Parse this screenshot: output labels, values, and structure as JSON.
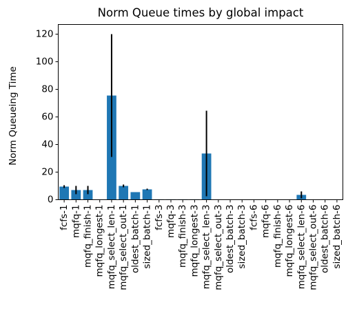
{
  "chart_data": {
    "type": "bar",
    "title": "Norm Queue times by global impact",
    "xlabel": "",
    "ylabel": "Norm Queueing Time",
    "ylim": [
      0,
      127
    ],
    "yticks": [
      0,
      20,
      40,
      60,
      80,
      100,
      120
    ],
    "grid": false,
    "bar_color": "#1f77b4",
    "error_bar_color": "#000000",
    "categories": [
      "fcfs-1",
      "mqfq-1",
      "mqfq_finish-1",
      "mqfq_longest-1",
      "mqfq_select_len-1",
      "mqfq_select_out-1",
      "oldest_batch-1",
      "sized_batch-1",
      "fcfs-3",
      "mqfq-3",
      "mqfq_finish-3",
      "mqfq_longest-3",
      "mqfq_select_len-3",
      "mqfq_select_out-3",
      "oldest_batch-3",
      "sized_batch-3",
      "fcfs-6",
      "mqfq-6",
      "mqfq_finish-6",
      "mqfq_longest-6",
      "mqfq_select_len-6",
      "mqfq_select_out-6",
      "oldest_batch-6",
      "sized_batch-6"
    ],
    "values": [
      9.5,
      7.0,
      7.0,
      0,
      75.5,
      10.0,
      5.5,
      7.5,
      0.3,
      0.3,
      0.3,
      0.3,
      33.5,
      0,
      0,
      0,
      0,
      0,
      0,
      0,
      3.5,
      0,
      0,
      0
    ],
    "errors": [
      1.0,
      3.0,
      3.0,
      0,
      44.5,
      1.0,
      0,
      0.5,
      0,
      0,
      0,
      0,
      31.0,
      0,
      0,
      0,
      0,
      0,
      0,
      0,
      2.5,
      0,
      0,
      0
    ]
  }
}
